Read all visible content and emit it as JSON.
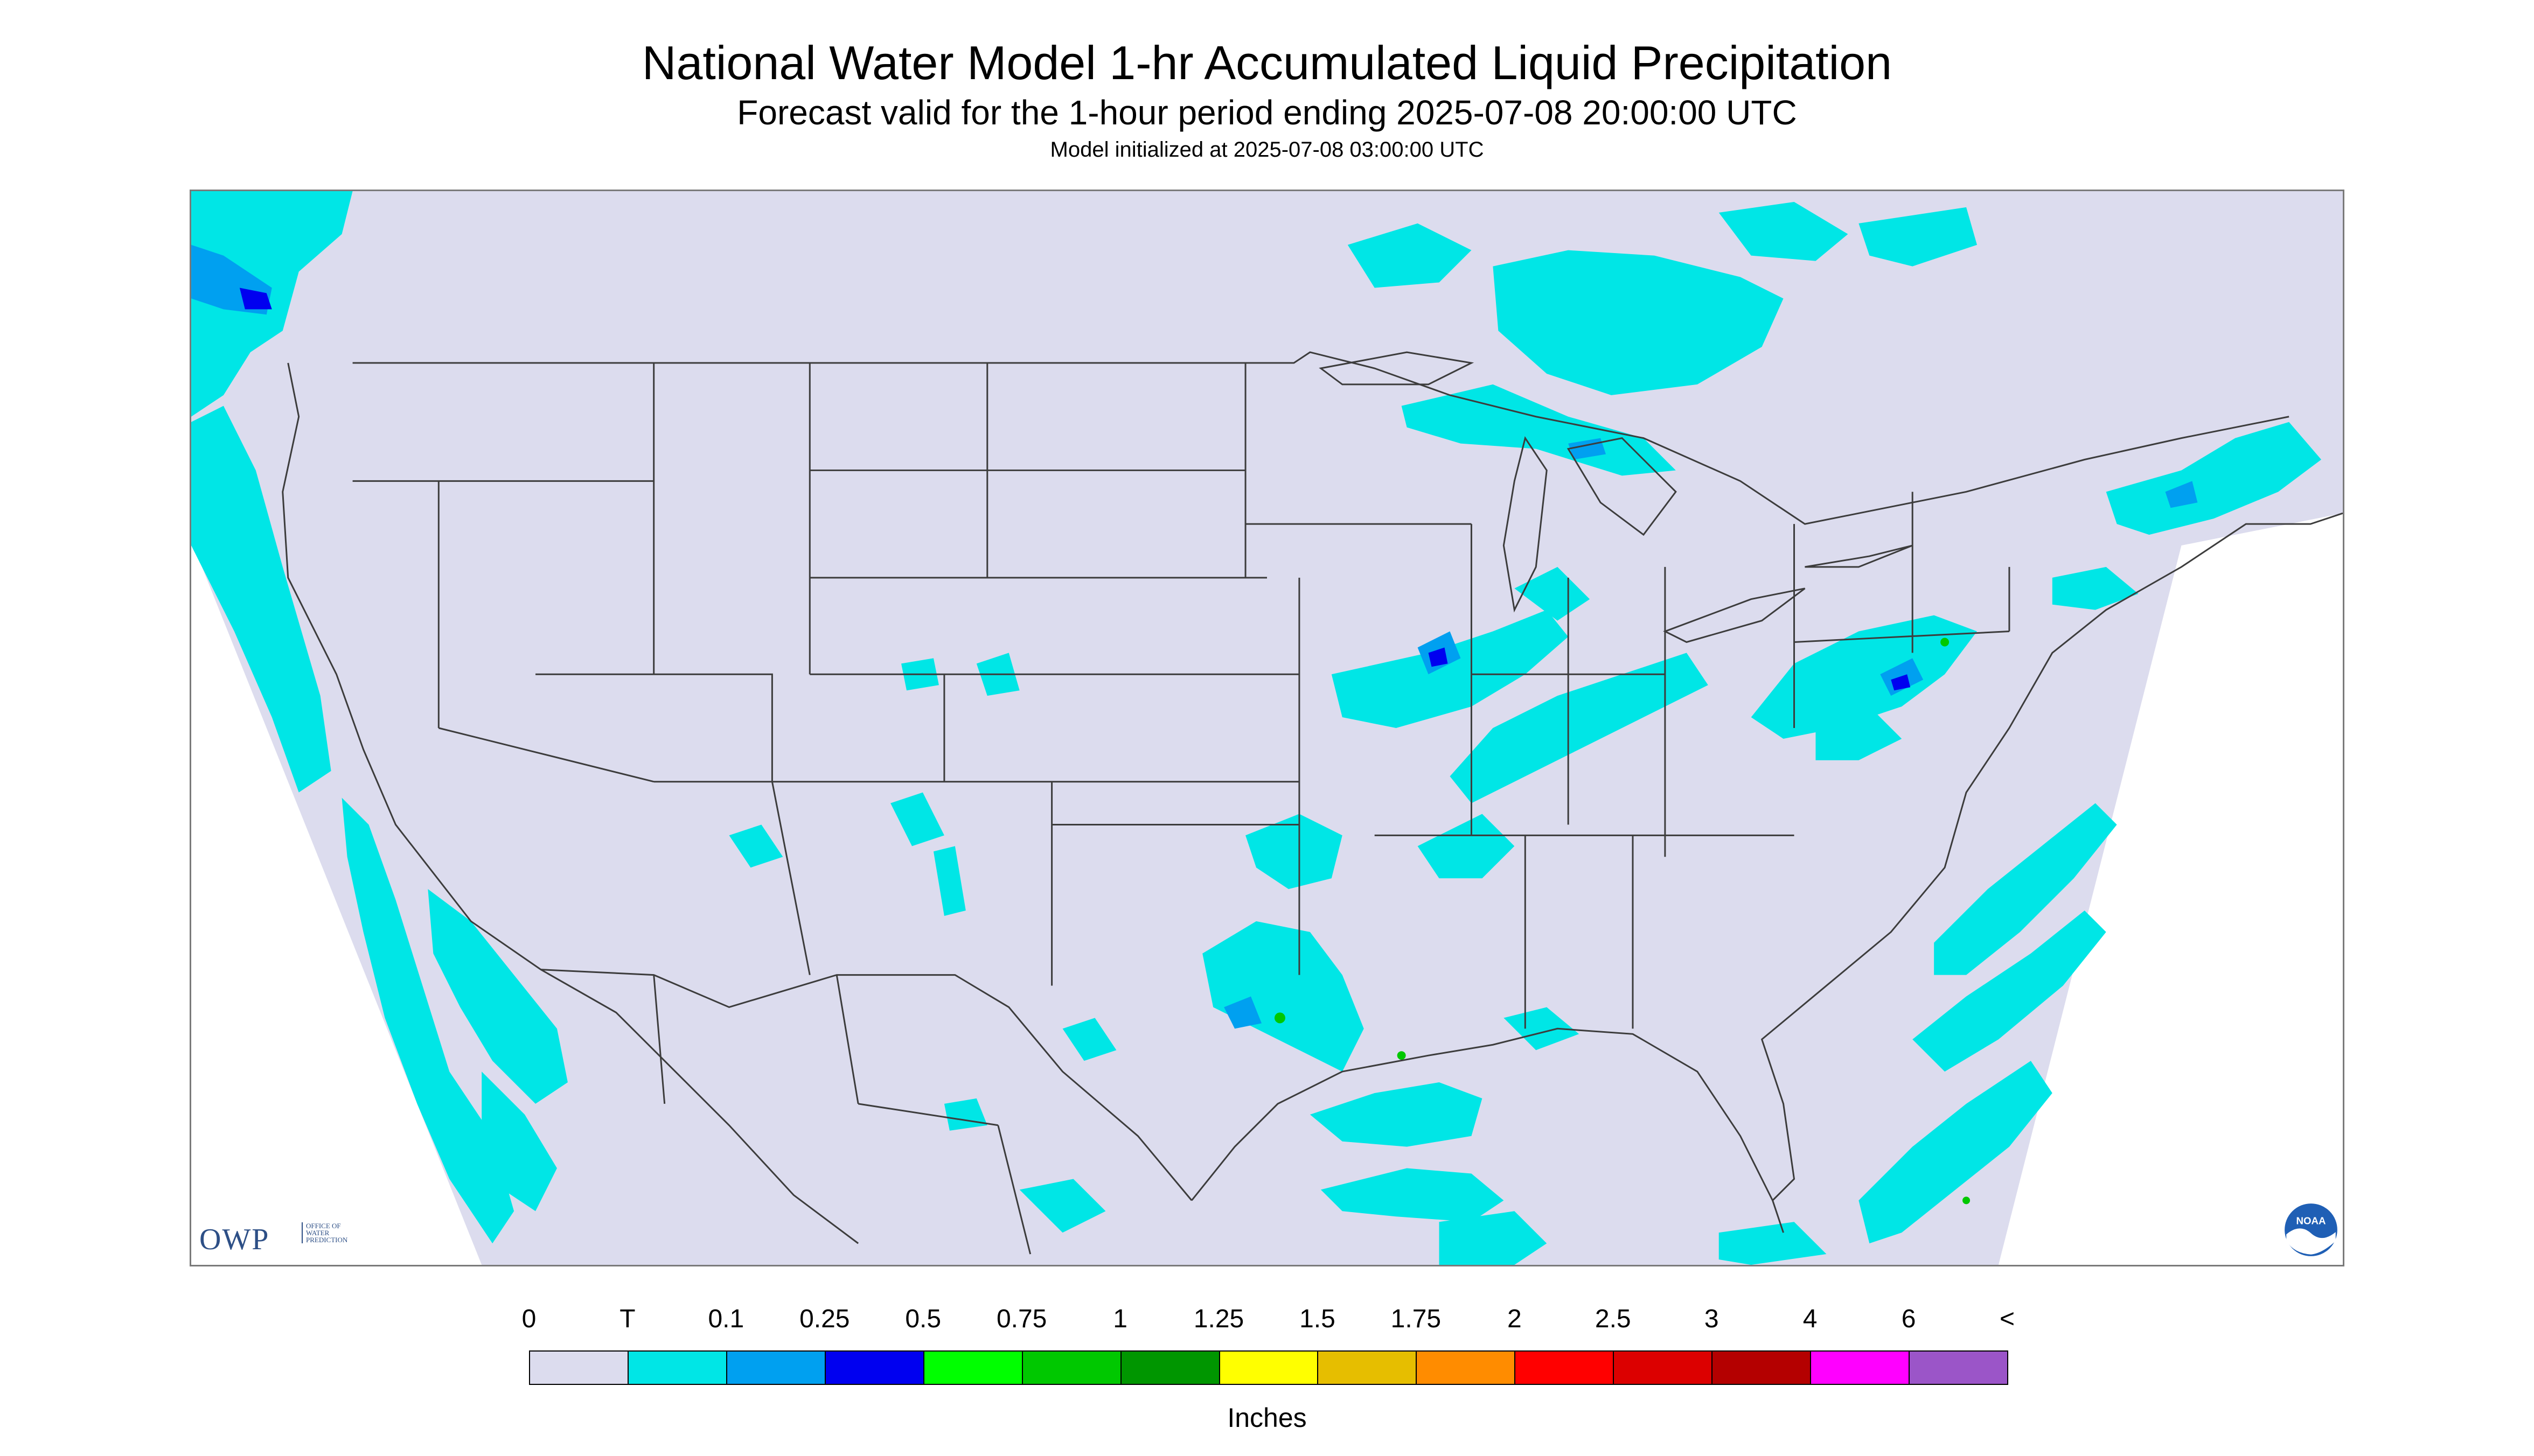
{
  "header": {
    "title": "National Water Model 1-hr Accumulated Liquid Precipitation",
    "subtitle": "Forecast valid for the 1-hour period ending 2025-07-08 20:00:00 UTC",
    "init_line": "Model initialized at 2025-07-08 03:00:00 UTC"
  },
  "logos": {
    "owp": "OWP",
    "owp_sub": "OFFICE OF WATER PREDICTION",
    "noaa": "NOAA"
  },
  "colors": {
    "no_data": "#dcdcee",
    "trace": "#00e6e6",
    "land_boundary": "#3c3c3c"
  },
  "legend": {
    "units": "Inches",
    "labels": [
      "0",
      "T",
      "0.1",
      "0.25",
      "0.5",
      "0.75",
      "1",
      "1.25",
      "1.5",
      "1.75",
      "2",
      "2.5",
      "3",
      "4",
      "6",
      "<"
    ],
    "bins": [
      {
        "color": "#dcdcee"
      },
      {
        "color": "#00e6e6"
      },
      {
        "color": "#00a0f0"
      },
      {
        "color": "#0000f0"
      },
      {
        "color": "#00ff00"
      },
      {
        "color": "#00c800"
      },
      {
        "color": "#009600"
      },
      {
        "color": "#ffff00"
      },
      {
        "color": "#e6be00"
      },
      {
        "color": "#ff8c00"
      },
      {
        "color": "#ff0000"
      },
      {
        "color": "#dc0000"
      },
      {
        "color": "#b40000"
      },
      {
        "color": "#ff00ff"
      },
      {
        "color": "#9b55c8"
      }
    ]
  }
}
